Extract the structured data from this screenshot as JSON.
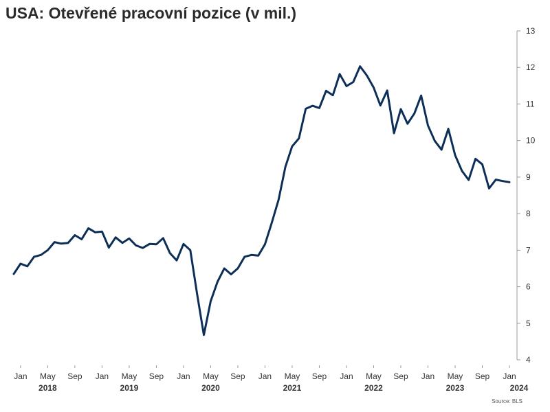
{
  "chart_data": {
    "type": "line",
    "title": "USA: Otevřené pracovní pozice (v mil.)",
    "source": "Source: BLS",
    "line_color": "#0d2f57",
    "ylim": [
      4,
      13
    ],
    "y_ticks": [
      4,
      5,
      6,
      7,
      8,
      9,
      10,
      11,
      12,
      13
    ],
    "x_start": "2017-12",
    "x_end": "2024-01",
    "x_tick_labels": [
      "Jan",
      "May",
      "Sep",
      "Jan",
      "May",
      "Sep",
      "Jan",
      "May",
      "Sep",
      "Jan",
      "May",
      "Sep",
      "Jan",
      "May",
      "Sep",
      "Jan",
      "May",
      "Sep",
      "Jan"
    ],
    "year_labels": [
      "2018",
      "2019",
      "2020",
      "2021",
      "2022",
      "2023",
      "2024"
    ],
    "series": [
      {
        "x": [
          "2017-12",
          "2018-01",
          "2018-02",
          "2018-03",
          "2018-04",
          "2018-05",
          "2018-06",
          "2018-07",
          "2018-08",
          "2018-09",
          "2018-10",
          "2018-11",
          "2018-12",
          "2019-01",
          "2019-02",
          "2019-03",
          "2019-04",
          "2019-05",
          "2019-06",
          "2019-07",
          "2019-08",
          "2019-09",
          "2019-10",
          "2019-11",
          "2019-12",
          "2020-01",
          "2020-02",
          "2020-03",
          "2020-04",
          "2020-05",
          "2020-06",
          "2020-07",
          "2020-08",
          "2020-09",
          "2020-10",
          "2020-11",
          "2020-12",
          "2021-01",
          "2021-02",
          "2021-03",
          "2021-04",
          "2021-05",
          "2021-06",
          "2021-07",
          "2021-08",
          "2021-09",
          "2021-10",
          "2021-11",
          "2021-12",
          "2022-01",
          "2022-02",
          "2022-03",
          "2022-04",
          "2022-05",
          "2022-06",
          "2022-07",
          "2022-08",
          "2022-09",
          "2022-10",
          "2022-11",
          "2022-12",
          "2023-01",
          "2023-02",
          "2023-03",
          "2023-04",
          "2023-05",
          "2023-06",
          "2023-07",
          "2023-08",
          "2023-09",
          "2023-10",
          "2023-11",
          "2023-12",
          "2024-01"
        ],
        "values": [
          6.35,
          6.63,
          6.56,
          6.82,
          6.87,
          7.0,
          7.22,
          7.18,
          7.2,
          7.41,
          7.3,
          7.6,
          7.49,
          7.51,
          7.07,
          7.35,
          7.2,
          7.32,
          7.13,
          7.06,
          7.17,
          7.16,
          7.33,
          6.92,
          6.72,
          7.17,
          7.0,
          5.8,
          4.68,
          5.6,
          6.13,
          6.5,
          6.34,
          6.5,
          6.82,
          6.87,
          6.85,
          7.16,
          7.75,
          8.38,
          9.28,
          9.84,
          10.06,
          10.87,
          10.95,
          10.89,
          11.36,
          11.24,
          11.82,
          11.49,
          11.6,
          12.03,
          11.78,
          11.45,
          10.96,
          11.37,
          10.2,
          10.86,
          10.46,
          10.74,
          11.23,
          10.41,
          9.99,
          9.75,
          10.32,
          9.6,
          9.17,
          8.92,
          9.5,
          9.35,
          8.69,
          8.93,
          8.89,
          8.86
        ]
      }
    ]
  }
}
